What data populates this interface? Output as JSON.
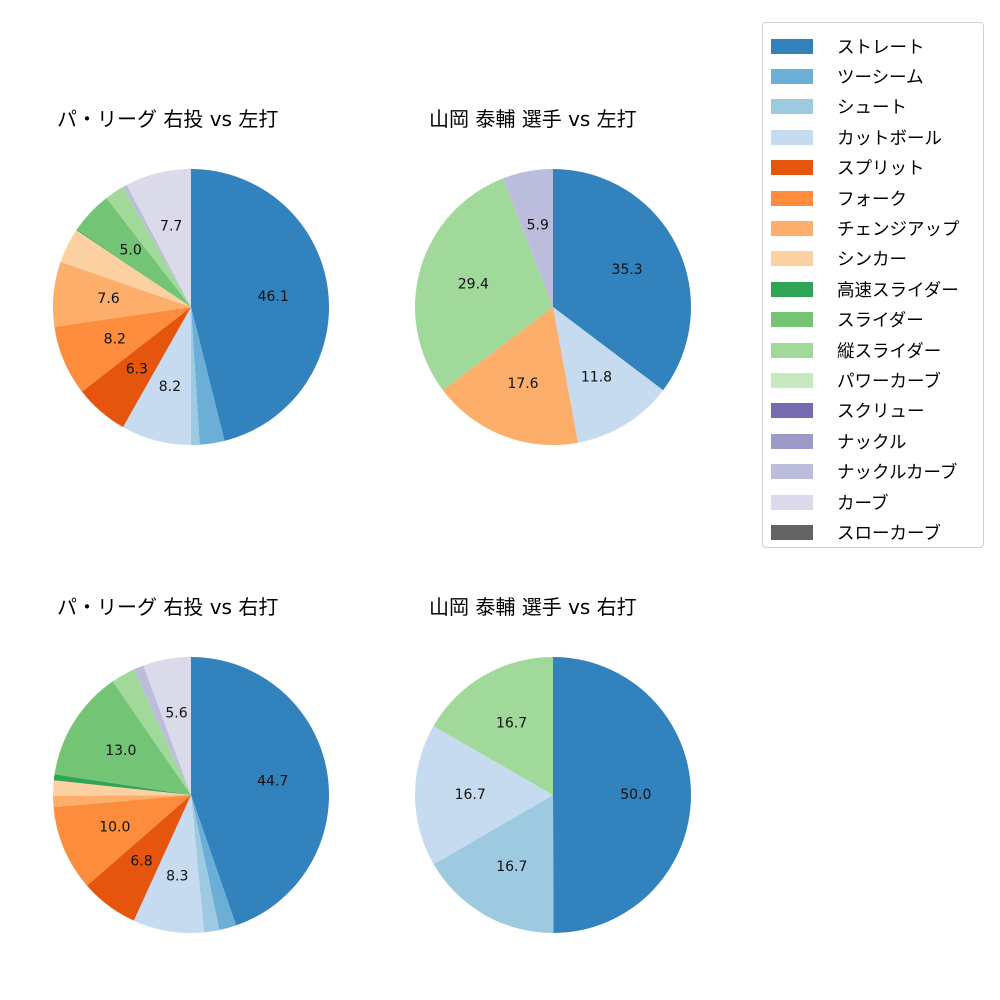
{
  "legend": {
    "items": [
      {
        "label": "ストレート",
        "color": "#3182bd"
      },
      {
        "label": "ツーシーム",
        "color": "#6baed6"
      },
      {
        "label": "シュート",
        "color": "#9ecae1"
      },
      {
        "label": "カットボール",
        "color": "#c6dbef"
      },
      {
        "label": "スプリット",
        "color": "#e6550d"
      },
      {
        "label": "フォーク",
        "color": "#fd8d3c"
      },
      {
        "label": "チェンジアップ",
        "color": "#fdae6b"
      },
      {
        "label": "シンカー",
        "color": "#fdd0a2"
      },
      {
        "label": "高速スライダー",
        "color": "#31a354"
      },
      {
        "label": "スライダー",
        "color": "#74c476"
      },
      {
        "label": "縦スライダー",
        "color": "#a1d99b"
      },
      {
        "label": "パワーカーブ",
        "color": "#c7e9c0"
      },
      {
        "label": "スクリュー",
        "color": "#756bb1"
      },
      {
        "label": "ナックル",
        "color": "#9e9ac8"
      },
      {
        "label": "ナックルカーブ",
        "color": "#bcbddc"
      },
      {
        "label": "カーブ",
        "color": "#dadaeb"
      },
      {
        "label": "スローカーブ",
        "color": "#636363"
      }
    ]
  },
  "chart_data": [
    {
      "type": "pie",
      "title": "パ・リーグ 右投 vs 左打",
      "categories": [
        "ストレート",
        "ツーシーム",
        "シュート",
        "カットボール",
        "スプリット",
        "フォーク",
        "チェンジアップ",
        "シンカー",
        "高速スライダー",
        "スライダー",
        "縦スライダー",
        "パワーカーブ",
        "スクリュー",
        "ナックル",
        "ナックルカーブ",
        "カーブ",
        "スローカーブ"
      ],
      "values": [
        46.1,
        2.9,
        1.0,
        8.2,
        6.3,
        8.2,
        7.6,
        4.1,
        0.1,
        5.0,
        2.3,
        0,
        0,
        0,
        0.5,
        7.7,
        0
      ],
      "labels_shown": [
        "46.1",
        "8.2",
        "8.2"
      ],
      "startangle": 90,
      "direction": "clockwise"
    },
    {
      "type": "pie",
      "title": "山岡 泰輔 選手 vs 左打",
      "categories": [
        "ストレート",
        "カットボール",
        "チェンジアップ",
        "縦スライダー",
        "ナックルカーブ"
      ],
      "values": [
        35.3,
        11.8,
        17.6,
        29.4,
        5.9
      ],
      "labels_shown": [
        "35.3",
        "11.8",
        "17.6",
        "29.4",
        "5.9"
      ],
      "startangle": 90,
      "direction": "clockwise"
    },
    {
      "type": "pie",
      "title": "パ・リーグ 右投 vs 右打",
      "categories": [
        "ストレート",
        "ツーシーム",
        "シュート",
        "カットボール",
        "スプリット",
        "フォーク",
        "チェンジアップ",
        "シンカー",
        "高速スライダー",
        "スライダー",
        "縦スライダー",
        "パワーカーブ",
        "スクリュー",
        "ナックル",
        "ナックルカーブ",
        "カーブ",
        "スローカーブ"
      ],
      "values": [
        44.7,
        2.0,
        1.8,
        8.3,
        6.8,
        10.0,
        1.3,
        1.8,
        0.7,
        13.0,
        2.8,
        0,
        0,
        0,
        1.2,
        5.6,
        0
      ],
      "labels_shown": [
        "44.7",
        "8.3",
        "10.0",
        "13.0"
      ],
      "startangle": 90,
      "direction": "clockwise"
    },
    {
      "type": "pie",
      "title": "山岡 泰輔 選手 vs 右打",
      "categories": [
        "ストレート",
        "シュート",
        "カットボール",
        "縦スライダー"
      ],
      "values": [
        50.0,
        16.7,
        16.7,
        16.7
      ],
      "labels_shown": [
        "50.0",
        "16.7",
        "16.7",
        "16.7"
      ],
      "startangle": 90,
      "direction": "clockwise"
    }
  ],
  "panels": [
    {
      "title": "パ・リーグ 右投 vs 左打"
    },
    {
      "title": "山岡 泰輔 選手 vs 左打"
    },
    {
      "title": "パ・リーグ 右投 vs 右打"
    },
    {
      "title": "山岡 泰輔 選手 vs 右打"
    }
  ]
}
